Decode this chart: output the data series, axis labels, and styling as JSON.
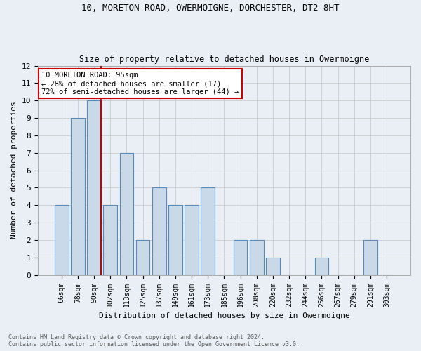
{
  "title1": "10, MORETON ROAD, OWERMOIGNE, DORCHESTER, DT2 8HT",
  "title2": "Size of property relative to detached houses in Owermoigne",
  "xlabel": "Distribution of detached houses by size in Owermoigne",
  "ylabel": "Number of detached properties",
  "categories": [
    "66sqm",
    "78sqm",
    "90sqm",
    "102sqm",
    "113sqm",
    "125sqm",
    "137sqm",
    "149sqm",
    "161sqm",
    "173sqm",
    "185sqm",
    "196sqm",
    "208sqm",
    "220sqm",
    "232sqm",
    "244sqm",
    "256sqm",
    "267sqm",
    "279sqm",
    "291sqm",
    "303sqm"
  ],
  "values": [
    4,
    9,
    10,
    4,
    7,
    2,
    5,
    4,
    4,
    5,
    0,
    2,
    2,
    1,
    0,
    0,
    1,
    0,
    0,
    2,
    0
  ],
  "bar_color": "#c9d9e8",
  "bar_edge_color": "#5588bb",
  "vline_color": "#cc0000",
  "annotation_text": "10 MORETON ROAD: 95sqm\n← 28% of detached houses are smaller (17)\n72% of semi-detached houses are larger (44) →",
  "annotation_box_color": "#ffffff",
  "annotation_box_edge": "#cc0000",
  "ylim": [
    0,
    12
  ],
  "yticks": [
    0,
    1,
    2,
    3,
    4,
    5,
    6,
    7,
    8,
    9,
    10,
    11,
    12
  ],
  "grid_color": "#cccccc",
  "background_color": "#eaeff5",
  "footnote1": "Contains HM Land Registry data © Crown copyright and database right 2024.",
  "footnote2": "Contains public sector information licensed under the Open Government Licence v3.0."
}
